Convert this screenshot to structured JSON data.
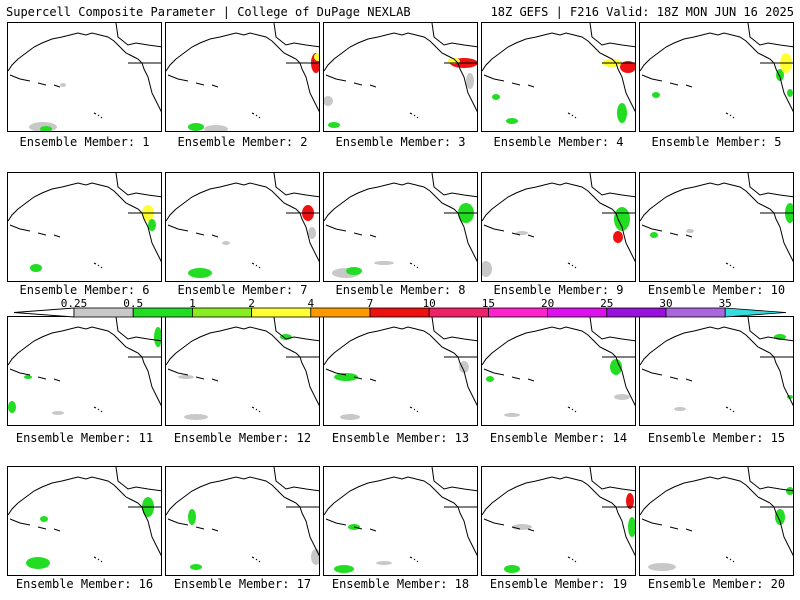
{
  "header": {
    "title": "Supercell Composite Parameter | College of DuPage NEXLAB",
    "run_info": "18Z GEFS | F216 Valid: 18Z MON JUN 16 2025"
  },
  "colorbar": {
    "ticks": [
      "0.25",
      "0.5",
      "1",
      "2",
      "4",
      "7",
      "10",
      "15",
      "20",
      "25",
      "30",
      "35"
    ],
    "colors": [
      "#c8c8c8",
      "#22dd22",
      "#88ee22",
      "#ffff33",
      "#ff9900",
      "#ee1111",
      "#ee2266",
      "#ff22cc",
      "#dd11ee",
      "#9911dd",
      "#aa66dd",
      "#33dddd"
    ]
  },
  "panels": [
    {
      "label": "Ensemble Member: 1"
    },
    {
      "label": "Ensemble Member: 2"
    },
    {
      "label": "Ensemble Member: 3"
    },
    {
      "label": "Ensemble Member: 4"
    },
    {
      "label": "Ensemble Member: 5"
    },
    {
      "label": "Ensemble Member: 6"
    },
    {
      "label": "Ensemble Member: 7"
    },
    {
      "label": "Ensemble Member: 8"
    },
    {
      "label": "Ensemble Member: 9"
    },
    {
      "label": "Ensemble Member: 10"
    },
    {
      "label": "Ensemble Member: 11"
    },
    {
      "label": "Ensemble Member: 12"
    },
    {
      "label": "Ensemble Member: 13"
    },
    {
      "label": "Ensemble Member: 14"
    },
    {
      "label": "Ensemble Member: 15"
    },
    {
      "label": "Ensemble Member: 16"
    },
    {
      "label": "Ensemble Member: 17"
    },
    {
      "label": "Ensemble Member: 18"
    },
    {
      "label": "Ensemble Member: 19"
    },
    {
      "label": "Ensemble Member: 20"
    }
  ]
}
